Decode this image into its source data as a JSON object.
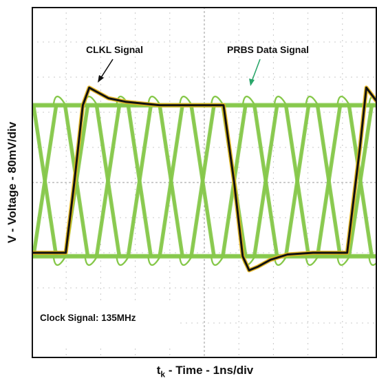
{
  "chart_data": {
    "type": "line",
    "title": "",
    "xlabel": {
      "prefix": "t",
      "subscript": "k",
      "suffix": " - Time - 1ns/div"
    },
    "ylabel": "V - Voltage - 80mV/div",
    "grid": true,
    "xlim": [
      0,
      8.1
    ],
    "ylim": [
      0,
      10
    ],
    "x_unit": "ns",
    "y_unit": "divisions (80 mV/div)",
    "annotations": {
      "clk_label": "CLKL Signal",
      "prbs_label": "PRBS Data Signal",
      "clock_note": "Clock Signal: 135MHz"
    },
    "series": [
      {
        "name": "CLKL Signal",
        "color": "#111111",
        "shadow_color": "#e3b21a",
        "x": [
          0,
          0.8,
          1.0,
          1.2,
          1.35,
          1.5,
          1.8,
          2.2,
          2.6,
          3.0,
          3.6,
          4.2,
          4.5,
          4.75,
          4.95,
          5.1,
          5.3,
          5.6,
          6.0,
          6.6,
          7.1,
          7.4,
          7.7,
          7.85,
          8.1
        ],
        "values": [
          3.0,
          3.0,
          5.0,
          7.2,
          7.7,
          7.6,
          7.4,
          7.3,
          7.25,
          7.2,
          7.2,
          7.2,
          7.2,
          5.0,
          2.9,
          2.5,
          2.6,
          2.8,
          2.95,
          3.0,
          3.0,
          3.0,
          6.0,
          7.7,
          7.3
        ]
      },
      {
        "name": "PRBS Data Signal",
        "color": "#86c84a",
        "type": "eye",
        "high": 7.2,
        "low": 2.9,
        "overshoot_high": 7.7,
        "overshoot_low": 2.4,
        "bit_period_ns": 0.74,
        "crossing_x": [
          0.31,
          1.05,
          1.79,
          2.53,
          3.27,
          4.01,
          4.75,
          5.49,
          6.23,
          6.97,
          7.71
        ]
      }
    ]
  }
}
